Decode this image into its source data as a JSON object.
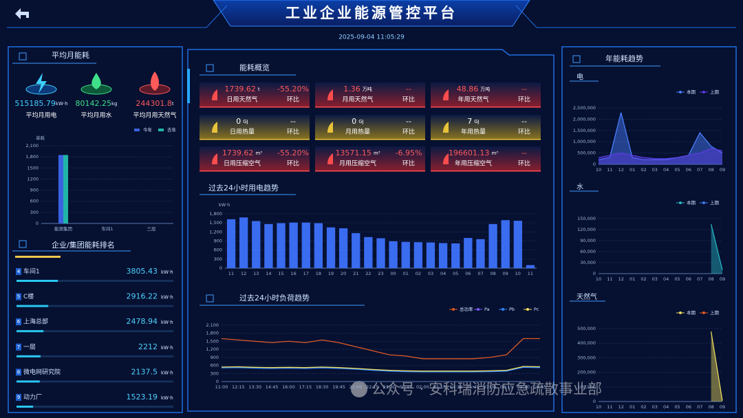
{
  "header": {
    "title": "工业企业能源管控平台",
    "datetime": "2025-09-04 11:05:29"
  },
  "monthly": {
    "title": "平均月能耗",
    "items": [
      {
        "value": 515185.79,
        "unit": "kW·h",
        "label": "平均月用电",
        "color": "#3fd0ff"
      },
      {
        "value": 80142.25,
        "unit": "kg",
        "label": "平均月用水",
        "color": "#3fe08a"
      },
      {
        "value": 244301.8,
        "unit": "t",
        "label": "平均月用天然气",
        "color": "#ff5a5a"
      }
    ]
  },
  "ranking": {
    "title": "企业/集团能耗排名",
    "rows": [
      {
        "rank": 4,
        "name": "车间1",
        "value": 3805.43,
        "unit": "kW·h"
      },
      {
        "rank": 5,
        "name": "C楼",
        "value": 2916.22,
        "unit": "kW·h"
      },
      {
        "rank": 6,
        "name": "上海总部",
        "value": 2478.94,
        "unit": "kW·h"
      },
      {
        "rank": 7,
        "name": "一层",
        "value": 2212,
        "unit": "kW·h"
      },
      {
        "rank": 8,
        "name": "微电网研究院",
        "value": 2137.5,
        "unit": "kW·h"
      },
      {
        "rank": 9,
        "name": "动力厂",
        "value": 1523.19,
        "unit": "kW·h"
      }
    ]
  },
  "overview": {
    "title": "能耗概览",
    "ratio_label": "环比",
    "cards": [
      {
        "value": 1739.62,
        "unit": "t",
        "label": "日用天然气",
        "ratio": "-55.20%"
      },
      {
        "value": 1.36,
        "unit": "万吨",
        "label": "月用天然气",
        "ratio": "--"
      },
      {
        "value": 48.86,
        "unit": "万吨",
        "label": "年用天然气",
        "ratio": "--"
      },
      {
        "value": 0,
        "unit": "GJ",
        "label": "日用热量",
        "ratio": "--"
      },
      {
        "value": 0,
        "unit": "GJ",
        "label": "月用热量",
        "ratio": "--"
      },
      {
        "value": 7,
        "unit": "GJ",
        "label": "年用热量",
        "ratio": "--"
      },
      {
        "value": 1739.62,
        "unit": "m³",
        "label": "日用压缩空气",
        "ratio": "-55.20%"
      },
      {
        "value": 13571.15,
        "unit": "m³",
        "label": "月用压缩空气",
        "ratio": "-6.95%"
      },
      {
        "value": 196601.13,
        "unit": "m³",
        "label": "年用压缩空气",
        "ratio": "--"
      }
    ]
  },
  "trend_title": "年能耗趋势",
  "watermark": "公众号 · 安科瑞消防应急疏散事业部",
  "chart_data": [
    {
      "type": "bar",
      "unit_label": "单耗",
      "categories": [
        "能源集团",
        "车间1",
        "三层"
      ],
      "series": [
        {
          "name": "今年",
          "color": "#3a62e0",
          "values": [
            1850,
            0,
            0
          ]
        },
        {
          "name": "去年",
          "color": "#1fb5a8",
          "values": [
            1850,
            0,
            0
          ]
        }
      ],
      "ylim": [
        0,
        2100
      ],
      "yticks": [
        0,
        300,
        600,
        900,
        1200,
        1500,
        {
          "value": 1800,
          "label": "1,800"
        },
        {
          "value": 2100,
          "label": "2,100"
        }
      ],
      "grid": true
    },
    {
      "type": "bar",
      "title": "过去24小时用电趋势",
      "unit_label": "kW·h",
      "color": "#3a6cf0",
      "categories": [
        "11",
        "12",
        "13",
        "14",
        "15",
        "16",
        "17",
        "18",
        "19",
        "20",
        "21",
        "22",
        "23",
        "00",
        "01",
        "02",
        "03",
        "04",
        "05",
        "06",
        "07",
        "08",
        "09",
        "10",
        "11"
      ],
      "values": [
        1620,
        1680,
        1560,
        1460,
        1490,
        1510,
        1510,
        1490,
        1350,
        1320,
        1160,
        1030,
        990,
        890,
        870,
        860,
        850,
        830,
        820,
        1000,
        960,
        1460,
        1590,
        1570,
        100
      ],
      "ylim": [
        0,
        1800
      ],
      "yticks": [
        0,
        300,
        600,
        900,
        {
          "value": 1200,
          "label": "1,200"
        },
        {
          "value": 1500,
          "label": "1,500"
        },
        {
          "value": 1800,
          "label": "1,800"
        }
      ],
      "grid": true
    },
    {
      "type": "line",
      "title": "过去24小时负荷趋势",
      "categories": [
        "11:00",
        "12:15",
        "13:30",
        "14:45",
        "16:00",
        "17:15",
        "18:30",
        "19:45",
        "21:00",
        "22:15",
        "23:30",
        "00:45",
        "02:00",
        "03:15",
        "04:30",
        "05:45",
        "07:00",
        "08:15",
        "09:30",
        "10:45"
      ],
      "series": [
        {
          "name": "总功率",
          "color": "#e05a23",
          "values": [
            1600,
            1550,
            1500,
            1450,
            1500,
            1450,
            1550,
            1450,
            1300,
            1150,
            1000,
            950,
            850,
            850,
            850,
            850,
            900,
            1000,
            1600,
            1600
          ]
        },
        {
          "name": "Pa",
          "color": "#7a5af8",
          "values": [
            520,
            530,
            510,
            500,
            510,
            500,
            520,
            500,
            470,
            430,
            400,
            380,
            370,
            370,
            370,
            370,
            380,
            400,
            540,
            530
          ]
        },
        {
          "name": "Pb",
          "color": "#2f87ff",
          "values": [
            510,
            520,
            500,
            490,
            500,
            490,
            510,
            490,
            460,
            420,
            390,
            370,
            360,
            360,
            360,
            360,
            370,
            390,
            530,
            520
          ]
        },
        {
          "name": "Pc",
          "color": "#f2e35a",
          "values": [
            540,
            550,
            530,
            520,
            530,
            520,
            540,
            520,
            490,
            450,
            420,
            400,
            390,
            390,
            390,
            390,
            400,
            420,
            560,
            550
          ]
        }
      ],
      "ylim": [
        0,
        2100
      ],
      "yticks": [
        0,
        300,
        600,
        900,
        {
          "value": 1200,
          "label": "1,200"
        },
        {
          "value": 1500,
          "label": "1,500"
        },
        {
          "value": 1800,
          "label": "1,800"
        },
        {
          "value": 2100,
          "label": "2,100"
        }
      ],
      "grid": true
    },
    {
      "type": "area",
      "title": "电",
      "categories": [
        "10",
        "11",
        "12",
        "01",
        "02",
        "03",
        "04",
        "05",
        "06",
        "07",
        "08",
        "09"
      ],
      "series": [
        {
          "name": "本期",
          "color": "#4a7fff",
          "values": [
            200000,
            300000,
            2300000,
            300000,
            200000,
            200000,
            200000,
            300000,
            400000,
            1400000,
            800000,
            500000
          ]
        },
        {
          "name": "上期",
          "color": "#5a3ce0",
          "values": [
            300000,
            400000,
            500000,
            400000,
            300000,
            250000,
            250000,
            300000,
            400000,
            500000,
            700000,
            600000
          ]
        }
      ],
      "ylim": [
        0,
        2500000
      ],
      "yticks": [
        0,
        {
          "value": 500000,
          "label": "500,000"
        },
        {
          "value": 1000000,
          "label": "1,000,000"
        },
        {
          "value": 1500000,
          "label": "1,500,000"
        },
        {
          "value": 2000000,
          "label": "2,000,000"
        },
        {
          "value": 2500000,
          "label": "2,500,000"
        }
      ],
      "grid": true
    },
    {
      "type": "area",
      "title": "水",
      "categories": [
        "10",
        "11",
        "12",
        "01",
        "02",
        "03",
        "04",
        "05",
        "06",
        "07",
        "08",
        "09"
      ],
      "series": [
        {
          "name": "本期",
          "color": "#27b3c2",
          "values": [
            null,
            null,
            null,
            null,
            null,
            null,
            null,
            null,
            null,
            null,
            135000,
            10000
          ]
        },
        {
          "name": "上期",
          "color": "#3f7cf0",
          "values": [
            null,
            null,
            null,
            null,
            null,
            null,
            null,
            null,
            null,
            null,
            null,
            null
          ]
        }
      ],
      "ylim": [
        0,
        150000
      ],
      "yticks": [
        0,
        {
          "value": 30000,
          "label": "30,000"
        },
        {
          "value": 60000,
          "label": "60,000"
        },
        {
          "value": 90000,
          "label": "90,000"
        },
        {
          "value": 120000,
          "label": "120,000"
        },
        {
          "value": 150000,
          "label": "150,000"
        }
      ],
      "grid": true
    },
    {
      "type": "area",
      "title": "天然气",
      "categories": [
        "10",
        "11",
        "12",
        "01",
        "02",
        "03",
        "04",
        "05",
        "06",
        "07",
        "08",
        "09"
      ],
      "series": [
        {
          "name": "本期",
          "color": "#e8d85a",
          "values": [
            null,
            null,
            null,
            null,
            null,
            null,
            null,
            null,
            null,
            null,
            480000,
            5000
          ]
        },
        {
          "name": "上期",
          "color": "#e05a23",
          "values": [
            null,
            null,
            null,
            null,
            null,
            null,
            null,
            null,
            null,
            null,
            null,
            null
          ]
        }
      ],
      "ylim": [
        0,
        500000
      ],
      "yticks": [
        0,
        {
          "value": 100000,
          "label": "100,000"
        },
        {
          "value": 200000,
          "label": "200,000"
        },
        {
          "value": 300000,
          "label": "300,000"
        },
        {
          "value": 400000,
          "label": "400,000"
        },
        {
          "value": 500000,
          "label": "500,000"
        }
      ],
      "grid": true
    }
  ]
}
